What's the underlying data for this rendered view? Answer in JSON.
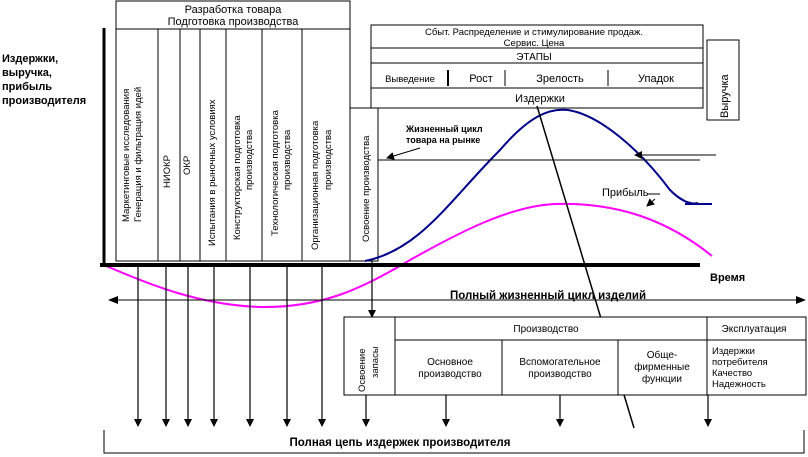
{
  "left_axis_label": [
    "Издержки,",
    "выручка,",
    "прибыль",
    "производителя"
  ],
  "development": {
    "title": [
      "Разработка товара",
      "Подготовка производства"
    ],
    "columns": [
      [
        "Маркетинговые исследования",
        "Генерация и фильтрация идей"
      ],
      [
        "НИОКР"
      ],
      [
        "ОКР"
      ],
      [
        "Испытания в рыночных условиях"
      ],
      [
        "Конструкторская подготовка",
        "производства"
      ],
      [
        "Технологическая подготовка",
        "производства"
      ],
      [
        "Организационная подготовка",
        "производства"
      ]
    ],
    "mastering": "Освоение производства"
  },
  "stages_box": {
    "top_line1": "Сбыт. Распределение и стимулирование продаж.",
    "top_line2": "Сервис. Цена",
    "title": "ЭТАПЫ",
    "stages": [
      "Выведение",
      "Рост",
      "Зрелость",
      "Упадок"
    ],
    "costs": "Издержки"
  },
  "revenue_label": "Выручка",
  "market_cycle_label": [
    "Жизненный цикл",
    "товара на рынке"
  ],
  "profit_label": "Прибыль",
  "time_label": "Время",
  "full_cycle_label": "Полный жизненный цикл изделий",
  "bottom_table": {
    "mastering": [
      "Освоение",
      "запасы"
    ],
    "production_header": "Производство",
    "exploitation_header": "Эксплуатация",
    "cells": [
      [
        "Основное",
        "производство"
      ],
      [
        "Вспомогательное",
        "производство"
      ],
      [
        "Обще-",
        "фирменные",
        "функции"
      ]
    ],
    "exploitation_items": [
      "Издержки",
      "потребителя",
      "Качество",
      "Надежность"
    ]
  },
  "bottom_label": "Полная цепь издержек производителя",
  "colors": {
    "revenue": "#00008b",
    "profit": "#ff00ff",
    "axis": "#000000"
  }
}
